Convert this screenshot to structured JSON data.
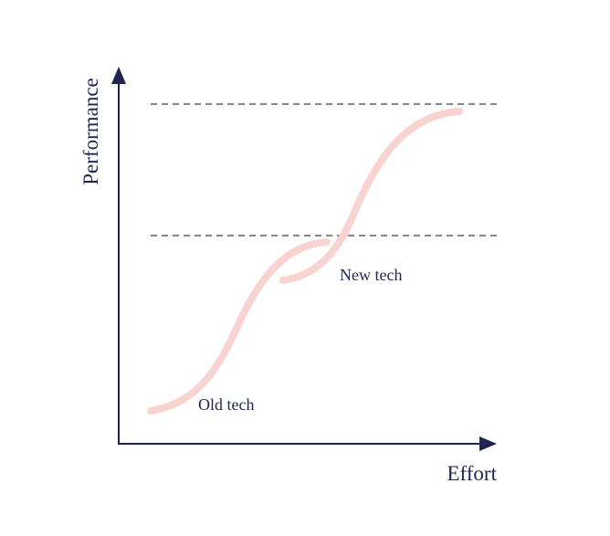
{
  "axes": {
    "y_label": "Performance",
    "x_label": "Effort"
  },
  "curves": [
    {
      "label": "Old tech"
    },
    {
      "label": "New tech"
    }
  ]
}
